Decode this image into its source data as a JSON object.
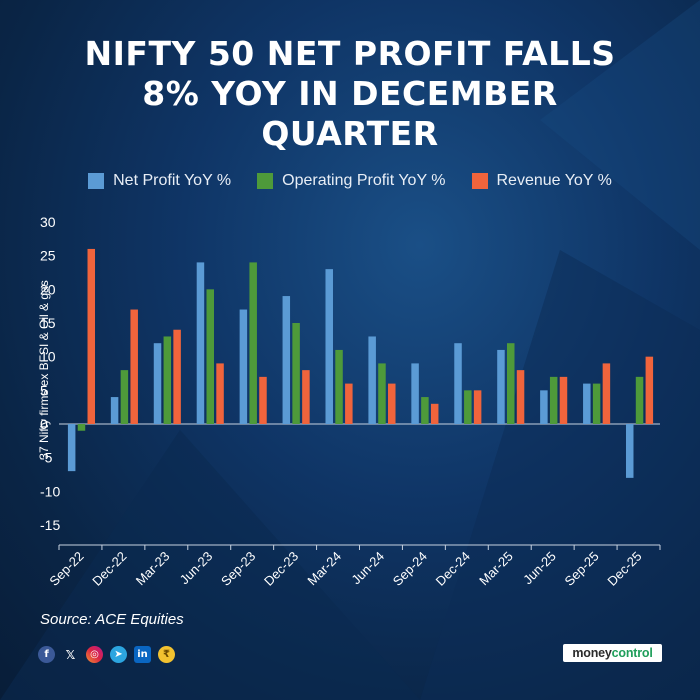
{
  "title_lines": [
    "NIFTY 50 NET PROFIT FALLS",
    "8% YOY IN DECEMBER",
    "QUARTER"
  ],
  "colors": {
    "net_profit": "#5b9bd5",
    "operating_profit": "#4e9a3a",
    "revenue": "#f0643c"
  },
  "source": "Source: ACE Equities",
  "social_icons": [
    "facebook-icon",
    "x-icon",
    "instagram-icon",
    "telegram-icon",
    "linkedin-icon",
    "moneycontrol-coin-icon"
  ],
  "logo": {
    "part1": "money",
    "part2": "control"
  },
  "chart_data": {
    "type": "bar",
    "title": "NIFTY 50 NET PROFIT FALLS 8% YOY IN DECEMBER QUARTER",
    "ylabel": "37 Nifty firms ex BFSI & Oil & gas",
    "xlabel": "",
    "ylim": [
      -15,
      30
    ],
    "yticks": [
      30,
      25,
      20,
      15,
      10,
      5,
      0,
      -5,
      -10,
      -15
    ],
    "legend_position": "top",
    "categories": [
      "Sep-22",
      "Dec-22",
      "Mar-23",
      "Jun-23",
      "Sep-23",
      "Dec-23",
      "Mar-24",
      "Jun-24",
      "Sep-24",
      "Dec-24",
      "Mar-25",
      "Jun-25",
      "Sep-25",
      "Dec-25"
    ],
    "series": [
      {
        "name": "Net Profit YoY %",
        "values": [
          -7,
          4,
          12,
          24,
          17,
          19,
          23,
          13,
          9,
          12,
          11,
          5,
          6,
          -8
        ]
      },
      {
        "name": "Operating Profit YoY %",
        "values": [
          -1,
          8,
          13,
          20,
          24,
          15,
          11,
          9,
          4,
          5,
          12,
          7,
          6,
          7
        ]
      },
      {
        "name": "Revenue YoY %",
        "values": [
          26,
          17,
          14,
          9,
          7,
          8,
          6,
          6,
          3,
          5,
          8,
          7,
          9,
          10
        ]
      }
    ]
  }
}
